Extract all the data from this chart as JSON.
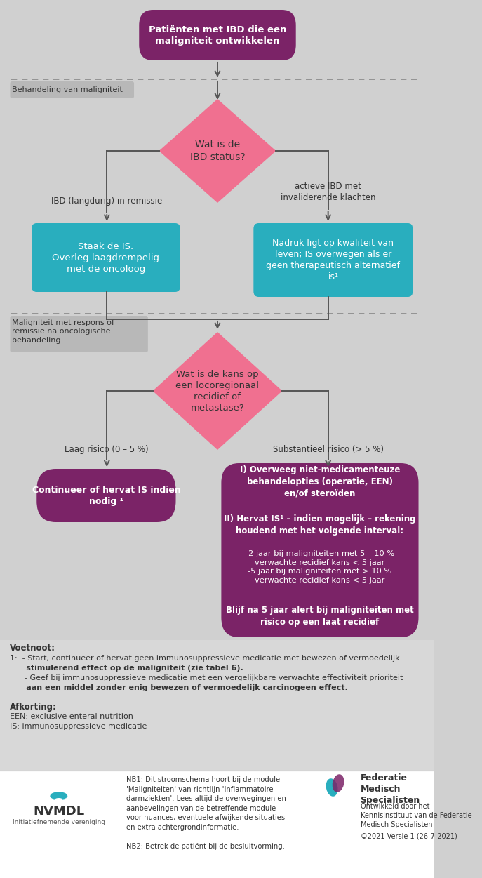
{
  "bg_color": "#d0d0d0",
  "footnote_bg": "#d8d8d8",
  "white_bg": "#ffffff",
  "purple_dark": "#7B2367",
  "pink": "#F07090",
  "teal": "#29AEBE",
  "gray_label": "#b8b8b8",
  "text_dark": "#333333",
  "text_white": "#ffffff",
  "top_box_text": "Patiënten met IBD die een\nmaligniteit ontwikkelen",
  "diamond1_text": "Wat is de\nIBD status?",
  "label_left1": "IBD (langdurig) in remissie",
  "label_right1": "actieve IBD met\ninvaliderende klachten",
  "box_left1_text": "Staak de IS.\nOverleg laagdrempelig\nmet de oncoloog",
  "box_right1_text": "Nadruk ligt op kwaliteit van\nleven; IS overwegen als er\ngeen therapeutisch alternatief\nis¹",
  "section_label1": "Behandeling van maligniteit",
  "section_label2": "Maligniteit met respons of\nremissie na oncologische\nbehandeling",
  "diamond2_text": "Wat is de kans op\neen locoregionaal\nrecidief of\nmetastase?",
  "label_left2": "Laag risico (0 – 5 %)",
  "label_right2": "Substantieel risico (> 5 %)",
  "box_left2_text": "Continueer of hervat IS indien\nnodig ¹",
  "box_right2_line1": "I) Overweeg niet-medicamenteuze\nbehandelopties (operatie, EEN)\nen/of steroïden",
  "box_right2_line2": "II) Hervat IS¹ – indien mogelijk – rekening\nhoudend met het volgende interval:",
  "box_right2_line3": "-2 jaar bij maligniteiten met 5 – 10 %\nverwachte recidief kans < 5 jaar\n-5 jaar bij maligniteiten met > 10 %\nverwachte recidief kans < 5 jaar",
  "box_right2_line4": "Blijf na 5 jaar alert bij maligniteiten met\nrisico op een laat recidief",
  "footnote_bold": "Voetnoot:",
  "footnote_line1": "1:  - Start, continueer of hervat geen immunosuppressieve medicatie met bewezen of vermoedelijk",
  "footnote_line2": "      stimulerend effect op de maligniteit (zie tabel 6).",
  "footnote_line3": "      - Geef bij immunosuppressieve medicatie met een vergelijkbare verwachte effectiviteit prioriteit",
  "footnote_line4": "      aan een middel zonder enig bewezen of vermoedelijk carcinogeen effect.",
  "footnote_afk": "Afkorting:",
  "footnote_een": "EEN: exclusive enteral nutrition",
  "footnote_is": "IS: immunosuppressieve medicatie",
  "nb1_text": "NB1: Dit stroomschema hoort bij de module\n'Maligniteiten' van richtlijn 'Inflammatoire\ndarmziekten'. Lees altijd de overwegingen en\naanbevelingen van de betreffende module\nvoor nuances, eventuele afwijkende situaties\nen extra achtergrondinformatie.\n\nNB2: Betrek de patiënt bij de besluitvorming.",
  "fms_line1": "Federatie",
  "fms_line2": "Medisch",
  "fms_line3": "Specialisten",
  "fms_line4": "Ontwikkeld door het\nKennisinstituut van de Federatie\nMedisch Specialisten",
  "fms_line5": "©2021 Versie 1 (26-7-2021)",
  "nvmdl_name": "NVMDL",
  "nvmdl_sub": "Initiatiefnemende vereniging"
}
